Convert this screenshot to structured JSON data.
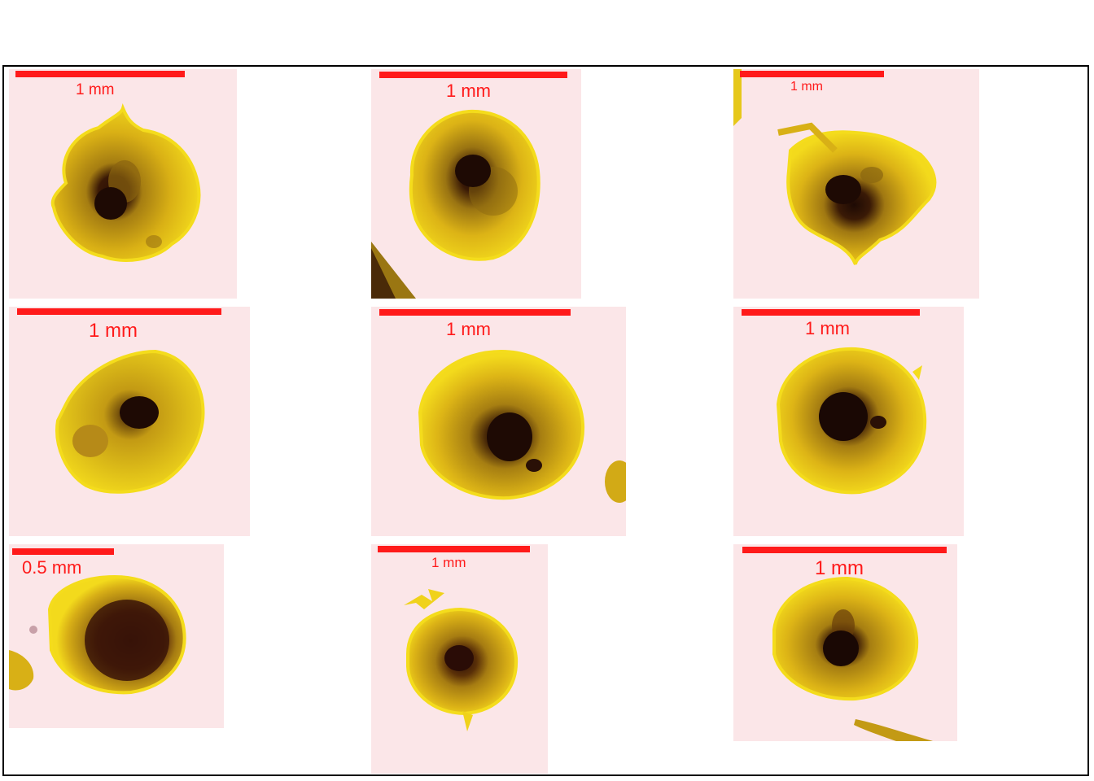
{
  "figure": {
    "panels": [
      {
        "scale_label": "1 mm",
        "bar_mm": 1
      },
      {
        "scale_label": "1 mm",
        "bar_mm": 1
      },
      {
        "scale_label": "1 mm",
        "bar_mm": 1
      },
      {
        "scale_label": "1 mm",
        "bar_mm": 1
      },
      {
        "scale_label": "1 mm",
        "bar_mm": 1
      },
      {
        "scale_label": "1 mm",
        "bar_mm": 1
      },
      {
        "scale_label": "0.5 mm",
        "bar_mm": 0.5
      },
      {
        "scale_label": "1 mm",
        "bar_mm": 1
      },
      {
        "scale_label": "1 mm",
        "bar_mm": 1
      }
    ],
    "colors": {
      "background": "#fbe6e8",
      "particle_edge": "#f2d81c",
      "particle_body": "#d8ae12",
      "particle_core": "#1e0a04",
      "scale_bar": "#ff1a1a"
    }
  }
}
